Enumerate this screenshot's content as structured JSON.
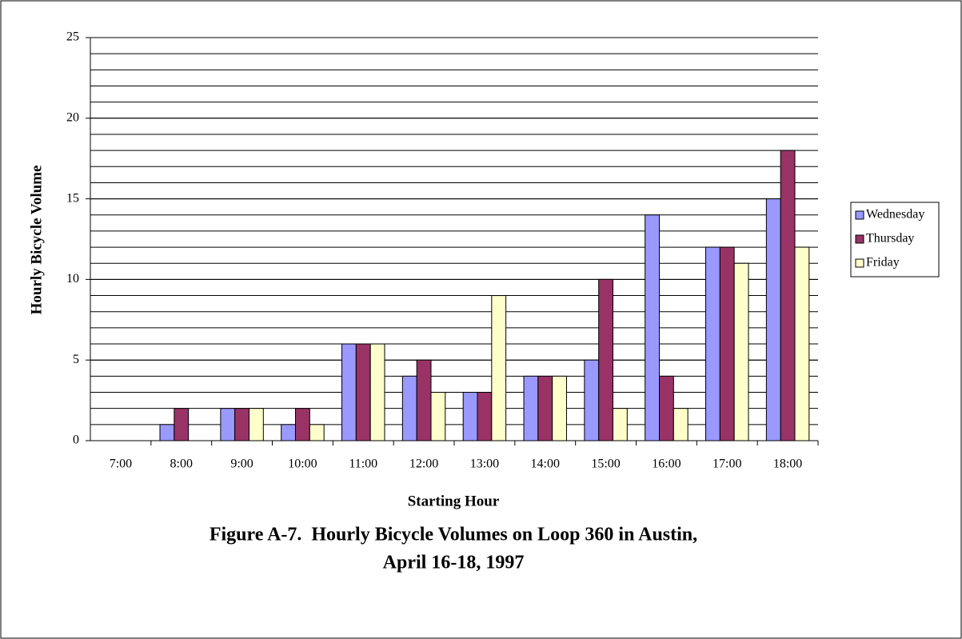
{
  "chart_data": {
    "type": "bar",
    "title": [
      "Figure A-7.  Hourly Bicycle Volumes on Loop 360 in Austin,",
      "April 16-18, 1997"
    ],
    "x_label": "Starting Hour",
    "y_label": "Hourly Bicycle Volume",
    "categories": [
      "7:00",
      "8:00",
      "9:00",
      "10:00",
      "11:00",
      "12:00",
      "13:00",
      "14:00",
      "15:00",
      "16:00",
      "17:00",
      "18:00"
    ],
    "series": [
      {
        "name": "Wednesday",
        "color": "#9999ff",
        "values": [
          0,
          1,
          2,
          1,
          6,
          4,
          3,
          4,
          5,
          14,
          12,
          15
        ]
      },
      {
        "name": "Thursday",
        "color": "#993366",
        "values": [
          0,
          2,
          2,
          2,
          6,
          5,
          3,
          4,
          10,
          4,
          12,
          18
        ]
      },
      {
        "name": "Friday",
        "color": "#ffffcc",
        "values": [
          0,
          0,
          2,
          1,
          6,
          3,
          9,
          4,
          2,
          2,
          11,
          12
        ]
      }
    ],
    "ylim": [
      0,
      25
    ],
    "yticks": [
      0,
      5,
      10,
      15,
      20,
      25
    ],
    "grid": true,
    "minor_grid_step": 1,
    "legend": "right"
  }
}
